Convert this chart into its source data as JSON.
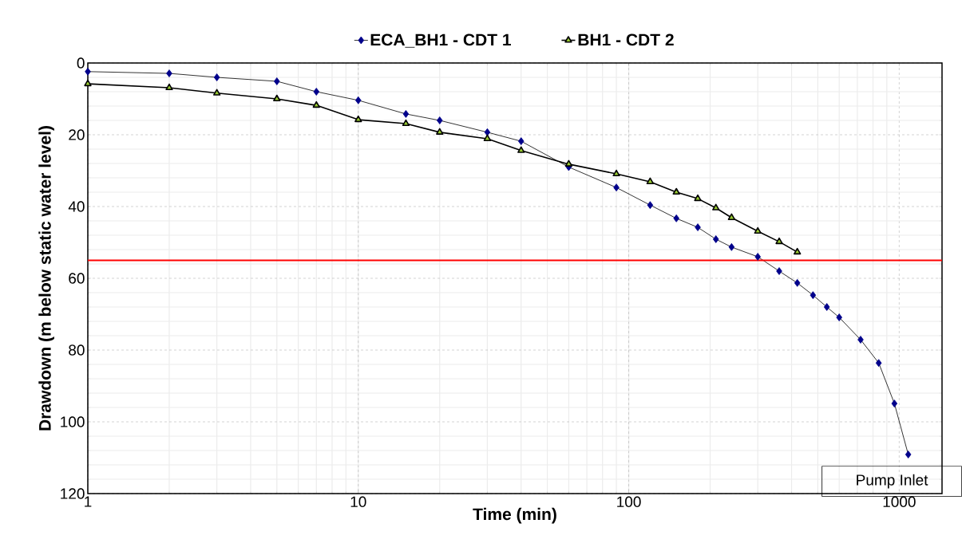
{
  "chart_data": {
    "type": "line",
    "xlabel": "Time (min)",
    "ylabel": "Drawdown (m below static water level)",
    "log": "x",
    "grid": true,
    "legend": "top",
    "xlim": [
      1,
      1440
    ],
    "xticks": [
      1,
      10,
      100,
      1000
    ],
    "ylim": [
      120,
      0
    ],
    "yticks": [
      0,
      20,
      40,
      60,
      80,
      100,
      120
    ],
    "series": [
      {
        "name": "ECA_BH1 - CDT 1",
        "color": "#00008b",
        "marker": "diamond",
        "x": [
          1,
          2,
          3,
          5,
          7,
          10,
          15,
          20,
          30,
          40,
          60,
          90,
          120,
          150,
          180,
          210,
          240,
          300,
          360,
          420,
          480,
          540,
          600,
          720,
          840,
          960,
          1080
        ],
        "values": [
          2.4,
          2.9,
          4,
          5.1,
          8,
          10.4,
          14.2,
          16,
          19.3,
          21.8,
          29,
          34.7,
          39.6,
          43.3,
          45.8,
          49.1,
          51.3,
          54,
          58,
          61.3,
          64.7,
          68,
          70.9,
          77.1,
          83.6,
          94.9,
          109.1
        ]
      },
      {
        "name": "BH1 - CDT 2",
        "color": "#9acd32",
        "marker": "triangle",
        "x": [
          1,
          2,
          3,
          5,
          7,
          10,
          15,
          20,
          30,
          40,
          60,
          90,
          120,
          150,
          180,
          210,
          240,
          300,
          360,
          420
        ],
        "values": [
          5.8,
          6.9,
          8.4,
          10,
          11.8,
          15.8,
          16.9,
          19.3,
          21.1,
          24.4,
          28.2,
          30.9,
          33.1,
          36,
          37.8,
          40.4,
          43.1,
          46.9,
          49.8,
          52.7
        ]
      }
    ],
    "annotations": [
      "Pump Inlet"
    ],
    "ref_lines": [
      {
        "axis": "y",
        "value": 55,
        "color": "#ff0000"
      }
    ]
  }
}
